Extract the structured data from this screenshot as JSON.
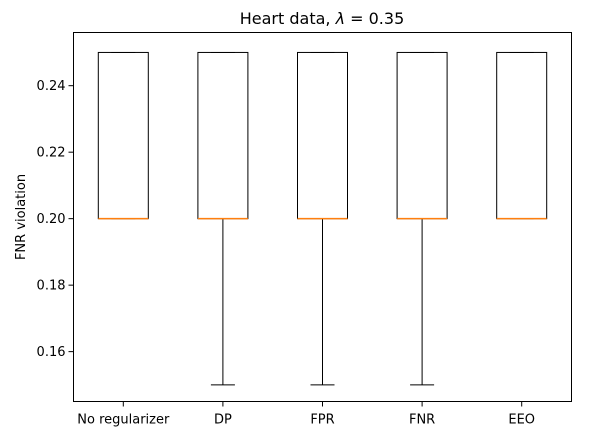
{
  "chart_data": {
    "type": "box",
    "title": {
      "prefix": "Heart data, ",
      "symbol": "λ",
      "suffix": " =  0.35"
    },
    "xlabel": "",
    "ylabel": "FNR violation",
    "ylim": [
      0.145,
      0.256
    ],
    "yticks": [
      0.16,
      0.18,
      0.2,
      0.22,
      0.24
    ],
    "ytick_labels": [
      "0.16",
      "0.18",
      "0.20",
      "0.22",
      "0.24"
    ],
    "grid": false,
    "categories": [
      "No regularizer",
      "DP",
      "FPR",
      "FNR",
      "EEO"
    ],
    "boxes": [
      {
        "label": "No regularizer",
        "whisker_low": 0.2,
        "q1": 0.2,
        "median": 0.2,
        "q3": 0.25,
        "whisker_high": 0.25
      },
      {
        "label": "DP",
        "whisker_low": 0.15,
        "q1": 0.2,
        "median": 0.2,
        "q3": 0.25,
        "whisker_high": 0.25
      },
      {
        "label": "FPR",
        "whisker_low": 0.15,
        "q1": 0.2,
        "median": 0.2,
        "q3": 0.25,
        "whisker_high": 0.25
      },
      {
        "label": "FNR",
        "whisker_low": 0.15,
        "q1": 0.2,
        "median": 0.2,
        "q3": 0.25,
        "whisker_high": 0.25
      },
      {
        "label": "EEO",
        "whisker_low": 0.2,
        "q1": 0.2,
        "median": 0.2,
        "q3": 0.25,
        "whisker_high": 0.25
      }
    ],
    "colors": {
      "box": "#000000",
      "median": "#ff7f0e"
    }
  }
}
